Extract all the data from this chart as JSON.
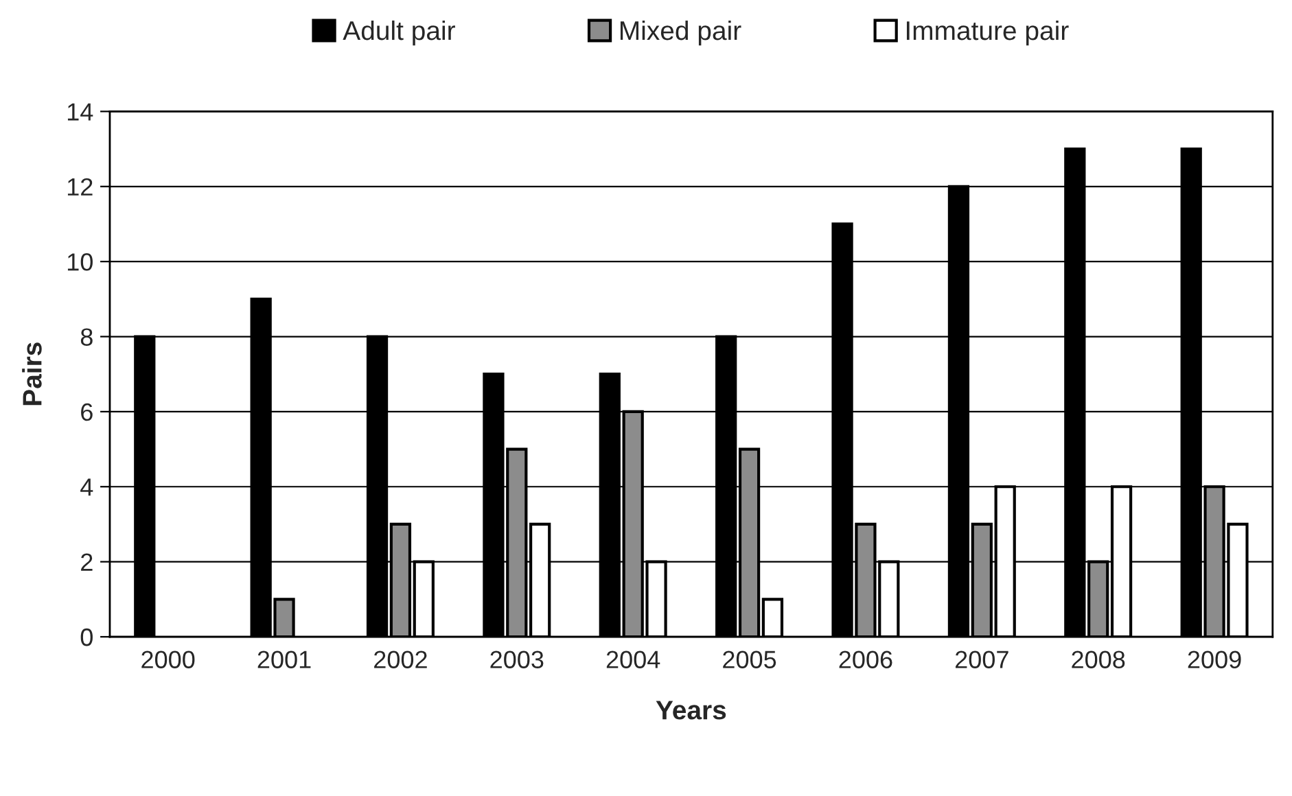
{
  "chart_data": {
    "type": "bar",
    "xlabel": "Years",
    "ylabel": "Pairs",
    "categories": [
      "2000",
      "2001",
      "2002",
      "2003",
      "2004",
      "2005",
      "2006",
      "2007",
      "2008",
      "2009"
    ],
    "series": [
      {
        "name": "Adult pair",
        "color": "#000000",
        "values": [
          8,
          9,
          8,
          7,
          7,
          8,
          11,
          12,
          13,
          13
        ]
      },
      {
        "name": "Mixed pair",
        "color": "#8c8c8c",
        "values": [
          0,
          1,
          3,
          5,
          6,
          5,
          3,
          3,
          2,
          4
        ]
      },
      {
        "name": "Immature pair",
        "color": "#ffffff",
        "values": [
          0,
          0,
          2,
          3,
          2,
          1,
          2,
          4,
          4,
          3
        ]
      }
    ],
    "ylim": [
      0,
      14
    ],
    "yticks": [
      0,
      2,
      4,
      6,
      8,
      10,
      12,
      14
    ],
    "grid": "y",
    "legend": "top"
  }
}
